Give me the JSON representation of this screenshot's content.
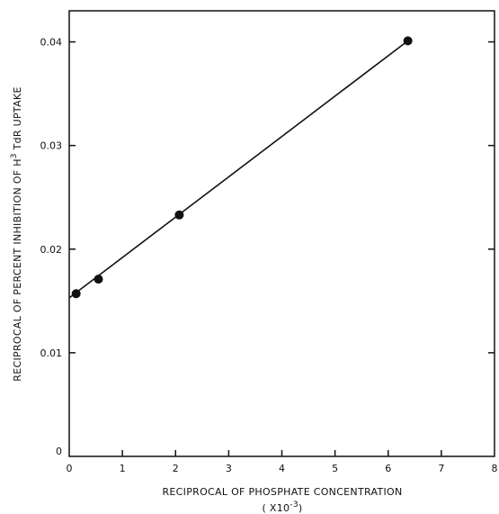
{
  "chart_data": {
    "type": "scatter",
    "title": "",
    "xlabel": "RECIPROCAL OF PHOSPHATE CONCENTRATION",
    "xlabel_units": "( X10",
    "xlabel_exponent": "-3",
    "xlabel_units_close": ")",
    "ylabel_prefix": "RECIPROCAL OF PERCENT INHIBITION OF H",
    "ylabel_superscript": "3",
    "ylabel_suffix": " TdR UPTAKE",
    "xlim": [
      0,
      8
    ],
    "ylim": [
      0,
      0.043
    ],
    "x_ticks": [
      0,
      1,
      2,
      3,
      4,
      5,
      6,
      7,
      8
    ],
    "x_tick_labels": [
      "0",
      "1",
      "2",
      "3",
      "4",
      "5",
      "6",
      "7",
      "8"
    ],
    "y_ticks": [
      0,
      0.01,
      0.02,
      0.03,
      0.04
    ],
    "y_tick_labels": [
      "0",
      "0.01",
      "0.02",
      "0.03",
      "0.04"
    ],
    "grid": false,
    "legend": "none",
    "series": [
      {
        "x": [
          0.13,
          0.55,
          2.07,
          6.37
        ],
        "values": [
          0.0157,
          0.0171,
          0.0233,
          0.0401
        ]
      }
    ],
    "fit_line": {
      "x": [
        0,
        6.37
      ],
      "y": [
        0.0153,
        0.0401
      ]
    }
  }
}
